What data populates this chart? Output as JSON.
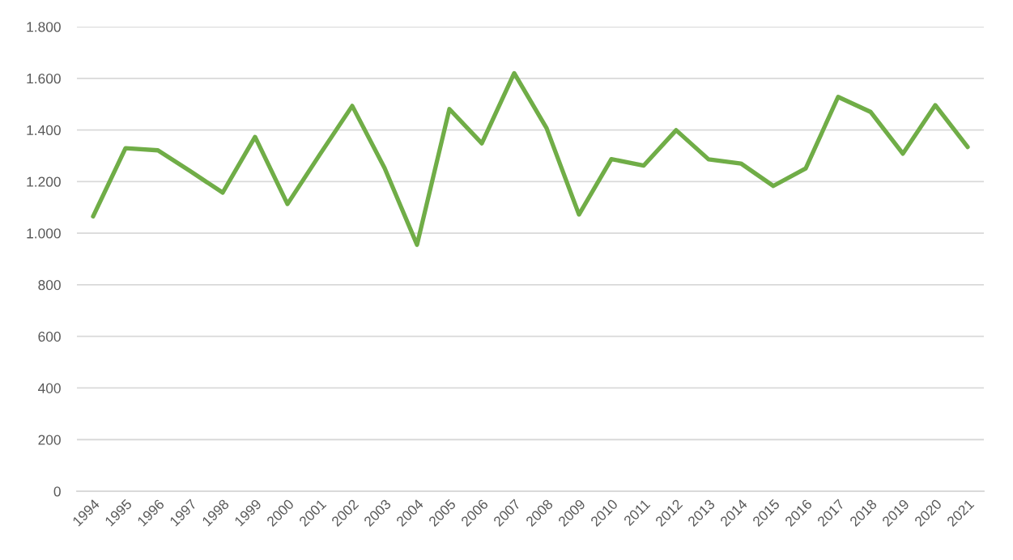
{
  "chart_data": {
    "type": "line",
    "categories": [
      "1994",
      "1995",
      "1996",
      "1997",
      "1998",
      "1999",
      "2000",
      "2001",
      "2002",
      "2003",
      "2004",
      "2005",
      "2006",
      "2007",
      "2008",
      "2009",
      "2010",
      "2011",
      "2012",
      "2013",
      "2014",
      "2015",
      "2016",
      "2017",
      "2018",
      "2019",
      "2020",
      "2021"
    ],
    "series": [
      {
        "color": "#70ad47",
        "values": [
          1065,
          1329,
          1321,
          1240,
          1157,
          1373,
          1113,
          1305,
          1493,
          1252,
          955,
          1481,
          1348,
          1620,
          1407,
          1072,
          1287,
          1262,
          1399,
          1286,
          1270,
          1183,
          1251,
          1528,
          1470,
          1308,
          1496,
          1334
        ]
      }
    ],
    "ylim": [
      0,
      1800
    ],
    "yticks": [
      0,
      200,
      400,
      600,
      800,
      {
        "value": 1000,
        "label": "1.000"
      },
      {
        "value": 1200,
        "label": "1.200"
      },
      {
        "value": 1400,
        "label": "1.400"
      },
      {
        "value": 1600,
        "label": "1.600"
      },
      {
        "value": 1800,
        "label": "1.800"
      }
    ],
    "grid": "y",
    "marker": "none",
    "line_style": "solid"
  }
}
